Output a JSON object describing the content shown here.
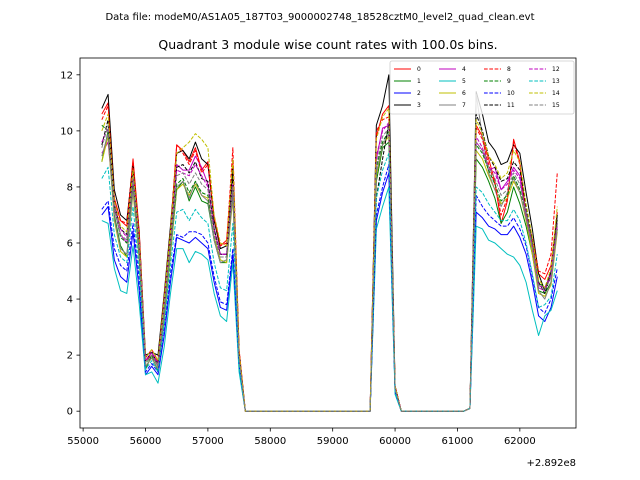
{
  "header": {
    "suptitle": "Data file: modeM0/AS1A05_187T03_9000002748_18528cztM0_level2_quad_clean.evt"
  },
  "chart_data": {
    "type": "line",
    "title": "Quadrant 3 module wise count rates with 100.0s bins.",
    "xlabel": "",
    "ylabel": "",
    "x_offset_label": "+2.892e8",
    "xlim": [
      54950,
      62900
    ],
    "ylim": [
      -0.6,
      12.6
    ],
    "xticks": [
      55000,
      56000,
      57000,
      58000,
      59000,
      60000,
      61000,
      62000
    ],
    "xtick_labels": [
      "55000",
      "56000",
      "57000",
      "58000",
      "59000",
      "60000",
      "61000",
      "62000"
    ],
    "yticks": [
      0,
      2,
      4,
      6,
      8,
      10,
      12
    ],
    "ytick_labels": [
      "0",
      "2",
      "4",
      "6",
      "8",
      "10",
      "12"
    ],
    "legend_position": "upper-right",
    "legend_columns": 4,
    "x": [
      55300,
      55400,
      55500,
      55600,
      55700,
      55800,
      55900,
      56000,
      56100,
      56200,
      56300,
      56400,
      56500,
      56600,
      56700,
      56800,
      56900,
      57000,
      57100,
      57200,
      57300,
      57400,
      57500,
      57600,
      57700,
      59600,
      59700,
      59800,
      59900,
      60000,
      60100,
      60200,
      61100,
      61200,
      61300,
      61400,
      61500,
      61600,
      61700,
      61800,
      61900,
      62000,
      62100,
      62200,
      62300,
      62400,
      62500,
      62600
    ],
    "series": [
      {
        "name": "0",
        "color": "#ff0000",
        "dash": "solid",
        "values": [
          10.6,
          11.0,
          7.6,
          6.8,
          6.6,
          9.0,
          6.4,
          1.8,
          2.0,
          1.8,
          4.0,
          6.4,
          9.5,
          9.3,
          8.9,
          9.4,
          8.6,
          8.9,
          6.9,
          5.9,
          6.1,
          8.9,
          2.2,
          0.0,
          0.0,
          0.0,
          9.8,
          10.6,
          10.9,
          0.9,
          0.0,
          0.0,
          0.0,
          0.1,
          10.2,
          9.8,
          9.0,
          8.2,
          6.7,
          7.5,
          9.7,
          8.9,
          6.9,
          6.0,
          4.9,
          4.7,
          5.2,
          7.1
        ]
      },
      {
        "name": "1",
        "color": "#008000",
        "dash": "solid",
        "values": [
          8.9,
          10.0,
          7.0,
          5.9,
          5.5,
          8.0,
          5.4,
          1.5,
          2.0,
          1.4,
          3.3,
          5.6,
          7.9,
          8.2,
          7.5,
          8.0,
          7.5,
          7.4,
          6.1,
          5.3,
          5.3,
          7.8,
          1.9,
          0.0,
          0.0,
          0.0,
          8.2,
          9.4,
          9.6,
          0.8,
          0.0,
          0.0,
          0.0,
          0.1,
          9.0,
          8.7,
          8.2,
          7.6,
          6.7,
          7.1,
          8.0,
          7.4,
          6.6,
          5.6,
          4.3,
          4.2,
          4.6,
          6.5
        ]
      },
      {
        "name": "2",
        "color": "#0000ff",
        "dash": "solid",
        "values": [
          7.0,
          7.3,
          5.4,
          4.8,
          4.6,
          6.4,
          4.3,
          1.3,
          1.6,
          1.3,
          2.7,
          4.6,
          6.2,
          6.1,
          6.0,
          6.2,
          6.0,
          5.8,
          4.6,
          3.7,
          3.6,
          5.6,
          1.6,
          0.0,
          0.0,
          0.0,
          6.8,
          7.8,
          8.5,
          0.7,
          0.0,
          0.0,
          0.0,
          0.1,
          7.1,
          6.9,
          6.6,
          6.5,
          6.3,
          6.3,
          6.6,
          6.2,
          5.6,
          4.6,
          3.4,
          3.2,
          3.7,
          4.8
        ]
      },
      {
        "name": "3",
        "color": "#000000",
        "dash": "solid",
        "values": [
          10.8,
          11.3,
          7.9,
          7.0,
          6.8,
          8.8,
          6.3,
          2.0,
          2.1,
          2.0,
          4.2,
          6.6,
          9.2,
          9.3,
          9.0,
          9.6,
          9.0,
          8.8,
          6.8,
          5.8,
          5.9,
          8.7,
          2.1,
          0.0,
          0.0,
          0.0,
          10.2,
          10.9,
          12.0,
          0.9,
          0.0,
          0.0,
          0.0,
          0.1,
          11.4,
          10.6,
          9.6,
          9.3,
          8.8,
          8.9,
          9.5,
          9.2,
          7.8,
          6.5,
          4.9,
          4.3,
          5.0,
          7.0
        ]
      },
      {
        "name": "4",
        "color": "#bf00bf",
        "dash": "solid",
        "values": [
          9.2,
          9.6,
          7.2,
          6.3,
          6.0,
          8.3,
          5.7,
          1.8,
          2.1,
          1.6,
          3.7,
          6.1,
          8.8,
          8.6,
          8.6,
          9.1,
          8.7,
          8.1,
          6.5,
          5.6,
          5.6,
          8.1,
          1.9,
          0.0,
          0.0,
          0.0,
          9.0,
          10.1,
          10.2,
          0.8,
          0.0,
          0.0,
          0.0,
          0.1,
          9.6,
          9.3,
          8.6,
          8.7,
          7.9,
          8.2,
          8.7,
          8.4,
          6.9,
          5.8,
          4.4,
          4.3,
          4.8,
          6.6
        ]
      },
      {
        "name": "5",
        "color": "#00bfbf",
        "dash": "solid",
        "values": [
          6.8,
          6.7,
          5.1,
          4.3,
          4.2,
          5.9,
          3.8,
          1.3,
          1.4,
          1.0,
          2.3,
          4.2,
          5.8,
          5.8,
          5.3,
          5.7,
          5.6,
          5.4,
          4.2,
          3.4,
          3.2,
          5.3,
          1.4,
          0.0,
          0.0,
          0.0,
          6.5,
          7.3,
          8.0,
          0.6,
          0.0,
          0.0,
          0.0,
          0.1,
          6.6,
          6.5,
          6.1,
          6.0,
          5.8,
          5.6,
          5.5,
          5.2,
          4.6,
          3.6,
          2.7,
          3.4,
          3.6,
          4.3
        ]
      },
      {
        "name": "6",
        "color": "#bfbf00",
        "dash": "solid",
        "values": [
          8.9,
          9.8,
          6.8,
          5.7,
          5.5,
          7.8,
          5.5,
          1.6,
          1.9,
          1.5,
          3.4,
          5.7,
          7.9,
          8.1,
          7.7,
          8.1,
          7.7,
          7.6,
          6.2,
          5.4,
          5.3,
          7.6,
          1.8,
          0.0,
          0.0,
          0.0,
          8.4,
          9.5,
          9.8,
          0.8,
          0.0,
          0.0,
          0.0,
          0.1,
          9.3,
          9.0,
          8.4,
          7.9,
          7.4,
          7.6,
          8.2,
          7.8,
          6.8,
          5.6,
          4.2,
          4.1,
          4.5,
          6.4
        ]
      },
      {
        "name": "7",
        "color": "#808080",
        "dash": "solid",
        "values": [
          9.1,
          9.9,
          6.9,
          5.8,
          5.6,
          7.9,
          5.6,
          1.6,
          1.9,
          1.5,
          3.5,
          5.8,
          8.0,
          8.2,
          7.6,
          8.2,
          7.7,
          7.5,
          6.1,
          5.3,
          5.4,
          7.7,
          1.8,
          0.0,
          0.0,
          0.0,
          8.5,
          9.5,
          9.9,
          0.8,
          0.0,
          0.0,
          0.0,
          0.1,
          11.3,
          9.8,
          8.5,
          7.9,
          7.3,
          7.8,
          8.3,
          7.8,
          6.9,
          5.8,
          4.3,
          4.0,
          4.6,
          6.5
        ]
      },
      {
        "name": "8",
        "color": "#ff0000",
        "dash": "dashed",
        "values": [
          10.4,
          10.9,
          7.6,
          6.8,
          6.7,
          8.9,
          6.3,
          1.9,
          2.2,
          1.8,
          4.1,
          6.4,
          9.5,
          9.2,
          8.8,
          9.3,
          8.5,
          8.8,
          6.9,
          5.9,
          6.0,
          9.4,
          2.2,
          0.0,
          0.0,
          0.0,
          10.0,
          10.4,
          10.5,
          0.9,
          0.0,
          0.0,
          0.0,
          0.1,
          10.1,
          9.7,
          8.8,
          8.1,
          7.0,
          7.6,
          9.6,
          8.8,
          7.0,
          6.2,
          5.0,
          4.9,
          5.6,
          8.5
        ]
      },
      {
        "name": "9",
        "color": "#008000",
        "dash": "dashed",
        "values": [
          10.2,
          10.0,
          7.3,
          6.2,
          6.0,
          8.3,
          5.8,
          1.7,
          2.0,
          1.6,
          3.7,
          6.0,
          8.1,
          8.3,
          7.8,
          8.2,
          7.8,
          7.7,
          6.3,
          5.5,
          5.5,
          8.0,
          1.9,
          0.0,
          0.0,
          0.0,
          8.7,
          9.6,
          10.0,
          0.8,
          0.0,
          0.0,
          0.0,
          0.1,
          9.5,
          9.2,
          8.6,
          8.1,
          7.5,
          7.7,
          8.4,
          7.9,
          7.1,
          6.0,
          4.6,
          4.4,
          4.9,
          6.8
        ]
      },
      {
        "name": "10",
        "color": "#0000ff",
        "dash": "dashed",
        "values": [
          7.2,
          7.5,
          5.8,
          5.2,
          5.0,
          6.7,
          4.7,
          1.4,
          1.7,
          1.4,
          3.0,
          4.9,
          6.3,
          6.2,
          6.4,
          6.4,
          6.3,
          6.0,
          4.8,
          3.9,
          3.8,
          5.8,
          1.7,
          0.0,
          0.0,
          0.0,
          7.0,
          8.0,
          8.8,
          0.7,
          0.0,
          0.0,
          0.0,
          0.1,
          7.7,
          7.3,
          7.0,
          6.8,
          6.6,
          6.6,
          6.9,
          6.5,
          5.9,
          4.8,
          3.7,
          3.5,
          4.0,
          5.1
        ]
      },
      {
        "name": "11",
        "color": "#000000",
        "dash": "dashed",
        "values": [
          9.5,
          10.4,
          7.4,
          6.5,
          6.3,
          8.5,
          5.9,
          1.8,
          2.1,
          1.7,
          3.9,
          6.2,
          8.7,
          8.8,
          8.5,
          8.9,
          8.3,
          8.2,
          6.5,
          5.6,
          5.6,
          8.3,
          2.0,
          0.0,
          0.0,
          0.0,
          7.6,
          9.0,
          10.3,
          0.8,
          0.0,
          0.0,
          0.0,
          0.1,
          10.6,
          10.0,
          9.1,
          8.7,
          8.2,
          8.3,
          8.9,
          8.6,
          7.3,
          6.1,
          4.6,
          4.2,
          4.9,
          6.9
        ]
      },
      {
        "name": "12",
        "color": "#bf00bf",
        "dash": "dashed",
        "values": [
          9.6,
          10.1,
          7.4,
          6.5,
          6.2,
          8.4,
          5.9,
          1.8,
          2.1,
          1.7,
          3.8,
          6.1,
          8.6,
          8.5,
          8.4,
          8.8,
          8.4,
          8.0,
          6.4,
          5.6,
          5.6,
          8.1,
          1.9,
          0.0,
          0.0,
          0.0,
          9.1,
          10.0,
          10.3,
          0.8,
          0.0,
          0.0,
          0.0,
          0.1,
          9.8,
          9.4,
          8.7,
          8.5,
          7.9,
          8.1,
          8.6,
          8.3,
          7.0,
          5.9,
          4.5,
          4.4,
          4.9,
          6.7
        ]
      },
      {
        "name": "13",
        "color": "#00bfbf",
        "dash": "dashed",
        "values": [
          8.3,
          8.7,
          6.3,
          5.5,
          5.3,
          7.3,
          5.0,
          1.5,
          1.8,
          1.4,
          3.1,
          5.2,
          7.1,
          7.2,
          6.8,
          7.2,
          6.9,
          6.7,
          5.3,
          4.4,
          4.3,
          6.7,
          1.7,
          0.0,
          0.0,
          0.0,
          7.6,
          8.6,
          9.2,
          0.7,
          0.0,
          0.0,
          0.0,
          0.1,
          8.0,
          7.8,
          7.4,
          7.1,
          6.8,
          6.8,
          7.2,
          6.8,
          6.0,
          4.9,
          3.7,
          3.8,
          4.1,
          5.6
        ]
      },
      {
        "name": "14",
        "color": "#bfbf00",
        "dash": "dashed",
        "values": [
          10.0,
          10.6,
          7.5,
          6.6,
          6.4,
          8.6,
          6.1,
          1.9,
          2.2,
          1.8,
          4.0,
          6.4,
          9.2,
          9.4,
          9.6,
          9.9,
          9.7,
          9.4,
          7.0,
          6.0,
          5.9,
          9.0,
          2.1,
          0.0,
          0.0,
          0.0,
          9.7,
          10.5,
          10.8,
          0.9,
          0.0,
          0.0,
          0.0,
          0.1,
          10.4,
          9.9,
          9.1,
          8.8,
          8.3,
          8.5,
          9.3,
          8.9,
          7.4,
          6.2,
          4.7,
          4.4,
          5.1,
          7.3
        ]
      },
      {
        "name": "15",
        "color": "#808080",
        "dash": "dashed",
        "values": [
          9.4,
          10.2,
          7.2,
          6.3,
          6.1,
          8.3,
          5.8,
          1.7,
          2.0,
          1.6,
          3.7,
          6.0,
          8.4,
          8.5,
          8.1,
          8.5,
          8.1,
          7.9,
          6.3,
          5.5,
          5.5,
          8.0,
          1.9,
          0.0,
          0.0,
          0.0,
          8.8,
          9.8,
          10.1,
          0.8,
          0.0,
          0.0,
          0.0,
          0.1,
          9.6,
          9.3,
          8.7,
          8.3,
          7.7,
          7.9,
          8.5,
          8.1,
          7.1,
          5.9,
          4.5,
          4.3,
          4.8,
          6.7
        ]
      }
    ]
  }
}
